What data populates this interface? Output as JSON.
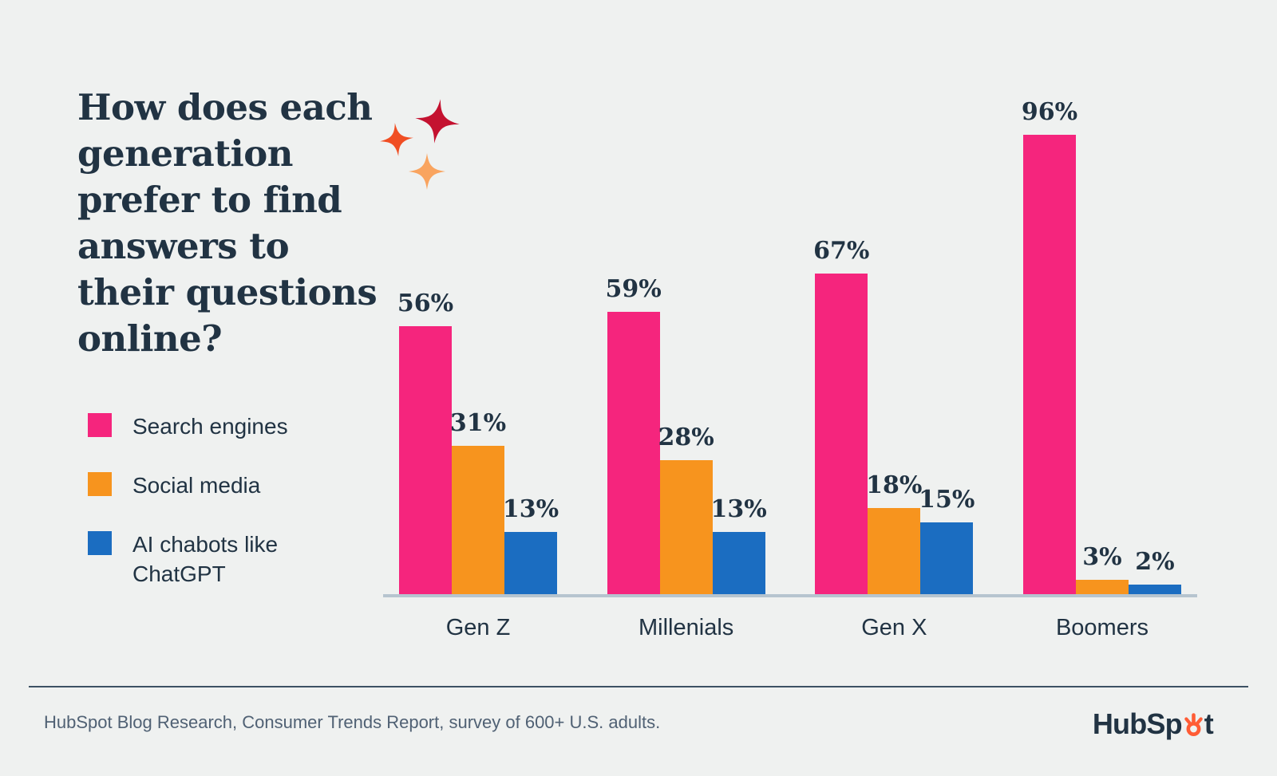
{
  "title": "How does each generation prefer to find answers to their questions online?",
  "legend": [
    {
      "label": "Search engines",
      "color": "#f5257d"
    },
    {
      "label": "Social media",
      "color": "#f7941e"
    },
    {
      "label": "AI chabots like ChatGPT",
      "color": "#1b6dc1"
    }
  ],
  "decor": {
    "sparkle_colors": [
      "#c41230",
      "#f04e23",
      "#f9a45f"
    ]
  },
  "chart_data": {
    "type": "bar",
    "categories": [
      "Gen Z",
      "Millenials",
      "Gen X",
      "Boomers"
    ],
    "series": [
      {
        "name": "Search engines",
        "color": "#f5257d",
        "values": [
          56,
          59,
          67,
          96
        ]
      },
      {
        "name": "Social media",
        "color": "#f7941e",
        "values": [
          31,
          28,
          18,
          3
        ]
      },
      {
        "name": "AI chabots like ChatGPT",
        "color": "#1b6dc1",
        "values": [
          13,
          13,
          15,
          2
        ]
      }
    ],
    "value_suffix": "%",
    "title": "How does each generation prefer to find answers to their questions online?",
    "xlabel": "",
    "ylabel": "",
    "ylim": [
      0,
      100
    ],
    "grid": false,
    "legend_position": "left"
  },
  "footer": {
    "source": "HubSpot Blog Research, Consumer Trends Report, survey of 600+ U.S. adults.",
    "logo_name": "HubSpot",
    "logo_prefix": "HubSp",
    "logo_suffix": "t",
    "logo_accent_color": "#ff5c35"
  }
}
